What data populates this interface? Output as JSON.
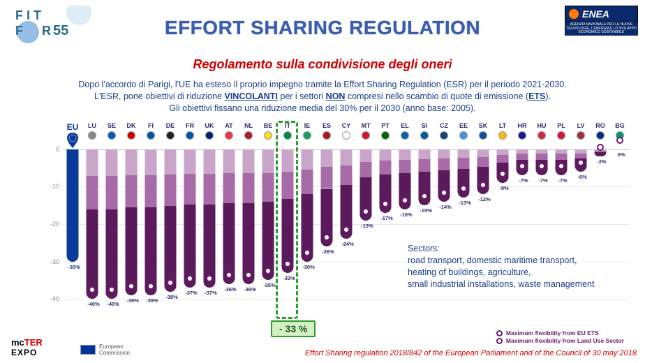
{
  "title": "EFFORT SHARING REGULATION",
  "subtitle": "Regolamento sulla condivisione degli oneri",
  "intro_line1_a": "Dopo l'accordo di Parigi, l'UE ha esteso il proprio impegno tramite la Effort Sharing Regulation (ESR) per il periodo 2021-2030.",
  "intro_line2_a": "L'ESR, pone obiettivi di riduzione ",
  "intro_line2_b": "VINCOLANTI",
  "intro_line2_c": " per i settori ",
  "intro_line2_d": "NON",
  "intro_line2_e": " compresi nello scambio di quote di emissione (",
  "intro_line2_f": "ETS",
  "intro_line2_g": ").",
  "intro_line3": "Gli obiettivi fissano una riduzione media del 30% per il 2030 (anno base: 2005).",
  "chart": {
    "type": "bar",
    "ylim": [
      -42,
      2
    ],
    "yticks": [
      0,
      -10,
      -20,
      -30,
      -40
    ],
    "zero_color": "#cccccc",
    "grid_color": "#e8e8e8",
    "colors": {
      "eu_bar": "#0a3a9a",
      "seg_top": "#c9a6c9",
      "seg_mid": "#a76ba7",
      "seg_bot": "#5b1a5b",
      "marker_border": "#6a1b6a"
    },
    "first": {
      "code": "EU",
      "value": -30,
      "flag": "#003399",
      "eu_pin": true
    },
    "countries": [
      {
        "code": "LU",
        "value": -40,
        "flag": "#888"
      },
      {
        "code": "SE",
        "value": -40,
        "flag": "#005bbb"
      },
      {
        "code": "DK",
        "value": -39,
        "flag": "#c00"
      },
      {
        "code": "FI",
        "value": -39,
        "flag": "#0055a4"
      },
      {
        "code": "DE",
        "value": -38,
        "flag": "#222"
      },
      {
        "code": "FR",
        "value": -37,
        "flag": "#0055a4"
      },
      {
        "code": "UK",
        "value": -37,
        "flag": "#012169"
      },
      {
        "code": "AT",
        "value": -36,
        "flag": "#ef3340"
      },
      {
        "code": "NL",
        "value": -36,
        "flag": "#ae1c28"
      },
      {
        "code": "BE",
        "value": -35,
        "flag": "#fdda24"
      },
      {
        "code": "IT",
        "value": -33,
        "flag": "#008c45",
        "highlight": true
      },
      {
        "code": "IE",
        "value": -30,
        "flag": "#169b62"
      },
      {
        "code": "ES",
        "value": -26,
        "flag": "#aa151b"
      },
      {
        "code": "CY",
        "value": -24,
        "flag": "#fff"
      },
      {
        "code": "MT",
        "value": -19,
        "flag": "#cf142b"
      },
      {
        "code": "PT",
        "value": -17,
        "flag": "#006600"
      },
      {
        "code": "EL",
        "value": -16,
        "flag": "#0d5eaf"
      },
      {
        "code": "SI",
        "value": -15,
        "flag": "#005da4"
      },
      {
        "code": "CZ",
        "value": -14,
        "flag": "#11457e"
      },
      {
        "code": "EE",
        "value": -13,
        "flag": "#4891d9"
      },
      {
        "code": "SK",
        "value": -12,
        "flag": "#0b4ea2"
      },
      {
        "code": "LT",
        "value": -9,
        "flag": "#fdb913"
      },
      {
        "code": "HR",
        "value": -7,
        "flag": "#171796"
      },
      {
        "code": "HU",
        "value": -7,
        "flag": "#cd2a3e"
      },
      {
        "code": "PL",
        "value": -7,
        "flag": "#dc143c"
      },
      {
        "code": "LV",
        "value": -6,
        "flag": "#9e3039"
      },
      {
        "code": "RO",
        "value": -2,
        "flag": "#002b7f"
      },
      {
        "code": "BG",
        "value": 0,
        "flag": "#00966e"
      }
    ]
  },
  "highlight_badge": "- 33 %",
  "sectors_title": "Sectors:",
  "sectors_body": "road transport, domestic maritime transport,\nheating of buildings, agriculture,\nsmall industrial installations, waste management",
  "legend1": "Maximum flexibility from EU ETS",
  "legend2": "Maximum flexibility from Land Use Sector",
  "ec_label": "European\nCommission",
  "source": "Effort Sharing regulation 2018/842 of the European Parliament and of the Council of 30 may 2018",
  "fit": {
    "line1": "FIT",
    "line2": "FOR55"
  },
  "enea": {
    "name": "ENEA",
    "sub": "AGENZIA NAZIONALE\nPER LE NUOVE TECNOLOGIE, L'ENERGIA\nE LO SVILUPPO ECONOMICO SOSTENIBILE"
  }
}
